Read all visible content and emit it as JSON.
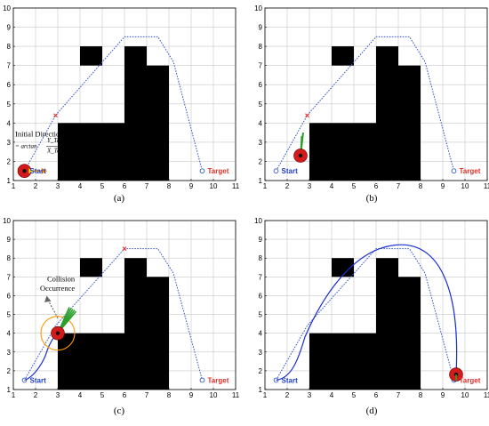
{
  "figure": {
    "grid_xlim": [
      1,
      11
    ],
    "grid_ylim": [
      1,
      10
    ],
    "x_ticks": [
      "1",
      "2",
      "3",
      "4",
      "5",
      "6",
      "7",
      "8",
      "9",
      "10",
      "11"
    ],
    "y_ticks": [
      "1",
      "2",
      "3",
      "4",
      "5",
      "6",
      "7",
      "8",
      "9",
      "10"
    ],
    "obstacles": [
      {
        "x1": 3,
        "y1": 1,
        "x2": 6,
        "y2": 4
      },
      {
        "x1": 6,
        "y1": 1,
        "x2": 7,
        "y2": 8
      },
      {
        "x1": 7,
        "y1": 1,
        "x2": 8,
        "y2": 7
      },
      {
        "x1": 4,
        "y1": 7,
        "x2": 5,
        "y2": 8
      }
    ],
    "global_path": [
      [
        1.5,
        1.5
      ],
      [
        2.9,
        4.4
      ],
      [
        6.0,
        8.5
      ],
      [
        7.5,
        8.5
      ],
      [
        8.2,
        7.2
      ],
      [
        9.5,
        1.5
      ]
    ],
    "start": [
      1.5,
      1.5
    ],
    "target": [
      9.5,
      1.5
    ],
    "start_label": "Start",
    "target_label": "Target",
    "colors": {
      "path": "#3355cc",
      "trajectory": "#1a2fd0",
      "waypoint": "#e0302a",
      "robot": "#d41a1a",
      "heading_arrow": "#2ca02c",
      "initial_arrow": "#ff9900",
      "obstacle": "#000000",
      "grid": "#c8c8c8"
    }
  },
  "panels": [
    {
      "id": "a",
      "caption": "(a)",
      "robot": [
        1.5,
        1.5
      ],
      "waypoint": [
        2.9,
        4.4
      ],
      "annotation": {
        "title": "Initial Direction Angle",
        "formula_line1": "Y_Target − Y_Start",
        "formula_prefix": "= arctan",
        "formula_line2": "X_Target − X_Start"
      }
    },
    {
      "id": "b",
      "caption": "(b)",
      "robot": [
        2.6,
        2.3
      ],
      "waypoint": [
        2.9,
        4.4
      ]
    },
    {
      "id": "c",
      "caption": "(c)",
      "robot": [
        3.0,
        4.0
      ],
      "waypoint": [
        6.0,
        8.5
      ],
      "annotation": {
        "line1": "Collision",
        "line2": "Occurrence"
      }
    },
    {
      "id": "d",
      "caption": "(d)",
      "robot": [
        9.6,
        1.8
      ],
      "waypoint": null
    }
  ]
}
